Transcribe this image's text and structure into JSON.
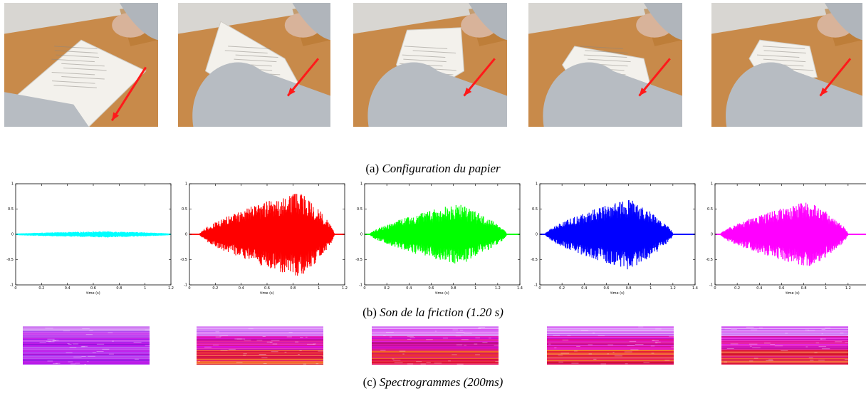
{
  "figure": {
    "caption_a": {
      "tag": "(a)",
      "text": "Configuration du papier"
    },
    "caption_b": {
      "tag": "(b)",
      "text": "Son de la friction (1.20 s)"
    },
    "caption_c": {
      "tag": "(c)",
      "text": "Spectrogrammes (200ms)"
    }
  },
  "photos": [
    {
      "paper": "flat"
    },
    {
      "paper": "curled-high"
    },
    {
      "paper": "curled-medium"
    },
    {
      "paper": "curled-low"
    },
    {
      "paper": "crumpled"
    }
  ],
  "chart_data": [
    {
      "type": "line",
      "color": "#00ffff",
      "xlabel": "time (s)",
      "xlim": [
        0,
        1.2
      ],
      "ylim": [
        -1,
        1
      ],
      "xticks": [
        0,
        0.2,
        0.4,
        0.6,
        0.8,
        1,
        1.2
      ],
      "yticks": [
        -1,
        -0.5,
        0,
        0.5,
        1
      ],
      "signal": {
        "start": 0.0,
        "end": 1.2,
        "peak_t": 0.7,
        "peak_amp": 0.05
      }
    },
    {
      "type": "line",
      "color": "#ff0000",
      "xlabel": "time (s)",
      "xlim": [
        0,
        1.2
      ],
      "ylim": [
        -1,
        1
      ],
      "xticks": [
        0,
        0.2,
        0.4,
        0.6,
        0.8,
        1,
        1.2
      ],
      "yticks": [
        -1,
        -0.5,
        0,
        0.5,
        1
      ],
      "signal": {
        "start": 0.08,
        "end": 1.12,
        "peak_t": 0.85,
        "peak_amp": 0.85
      }
    },
    {
      "type": "line",
      "color": "#00ff00",
      "xlabel": "time (s)",
      "xlim": [
        0,
        1.4
      ],
      "ylim": [
        -1,
        1
      ],
      "xticks": [
        0,
        0.2,
        0.4,
        0.6,
        0.8,
        1,
        1.2,
        1.4
      ],
      "yticks": [
        -1,
        -0.5,
        0,
        0.5,
        1
      ],
      "signal": {
        "start": 0.05,
        "end": 1.28,
        "peak_t": 0.85,
        "peak_amp": 0.6
      }
    },
    {
      "type": "line",
      "color": "#0000ff",
      "xlabel": "time (s)",
      "xlim": [
        0,
        1.4
      ],
      "ylim": [
        -1,
        1
      ],
      "xticks": [
        0,
        0.2,
        0.4,
        0.6,
        0.8,
        1,
        1.2,
        1.4
      ],
      "yticks": [
        -1,
        -0.5,
        0,
        0.5,
        1
      ],
      "signal": {
        "start": 0.05,
        "end": 1.2,
        "peak_t": 0.8,
        "peak_amp": 0.7
      }
    },
    {
      "type": "line",
      "color": "#ff00ff",
      "xlabel": "time (s)",
      "xlim": [
        0,
        1.4
      ],
      "ylim": [
        -1,
        1
      ],
      "xticks": [
        0,
        0.2,
        0.4,
        0.6,
        0.8,
        1,
        1.2,
        1.4
      ],
      "yticks": [
        -1,
        -0.5,
        0,
        0.5,
        1
      ],
      "signal": {
        "start": 0.05,
        "end": 1.2,
        "peak_t": 0.85,
        "peak_amp": 0.65
      }
    }
  ],
  "spectrograms": [
    {
      "intensity": "low"
    },
    {
      "intensity": "high"
    },
    {
      "intensity": "high"
    },
    {
      "intensity": "high"
    },
    {
      "intensity": "high"
    }
  ],
  "colors": {
    "table": "#c88a4a",
    "wall": "#d8d6d2",
    "sleeve": "#b7bcc2",
    "arrow": "#ff1a1a",
    "spec_base": "#9a2fe0"
  }
}
